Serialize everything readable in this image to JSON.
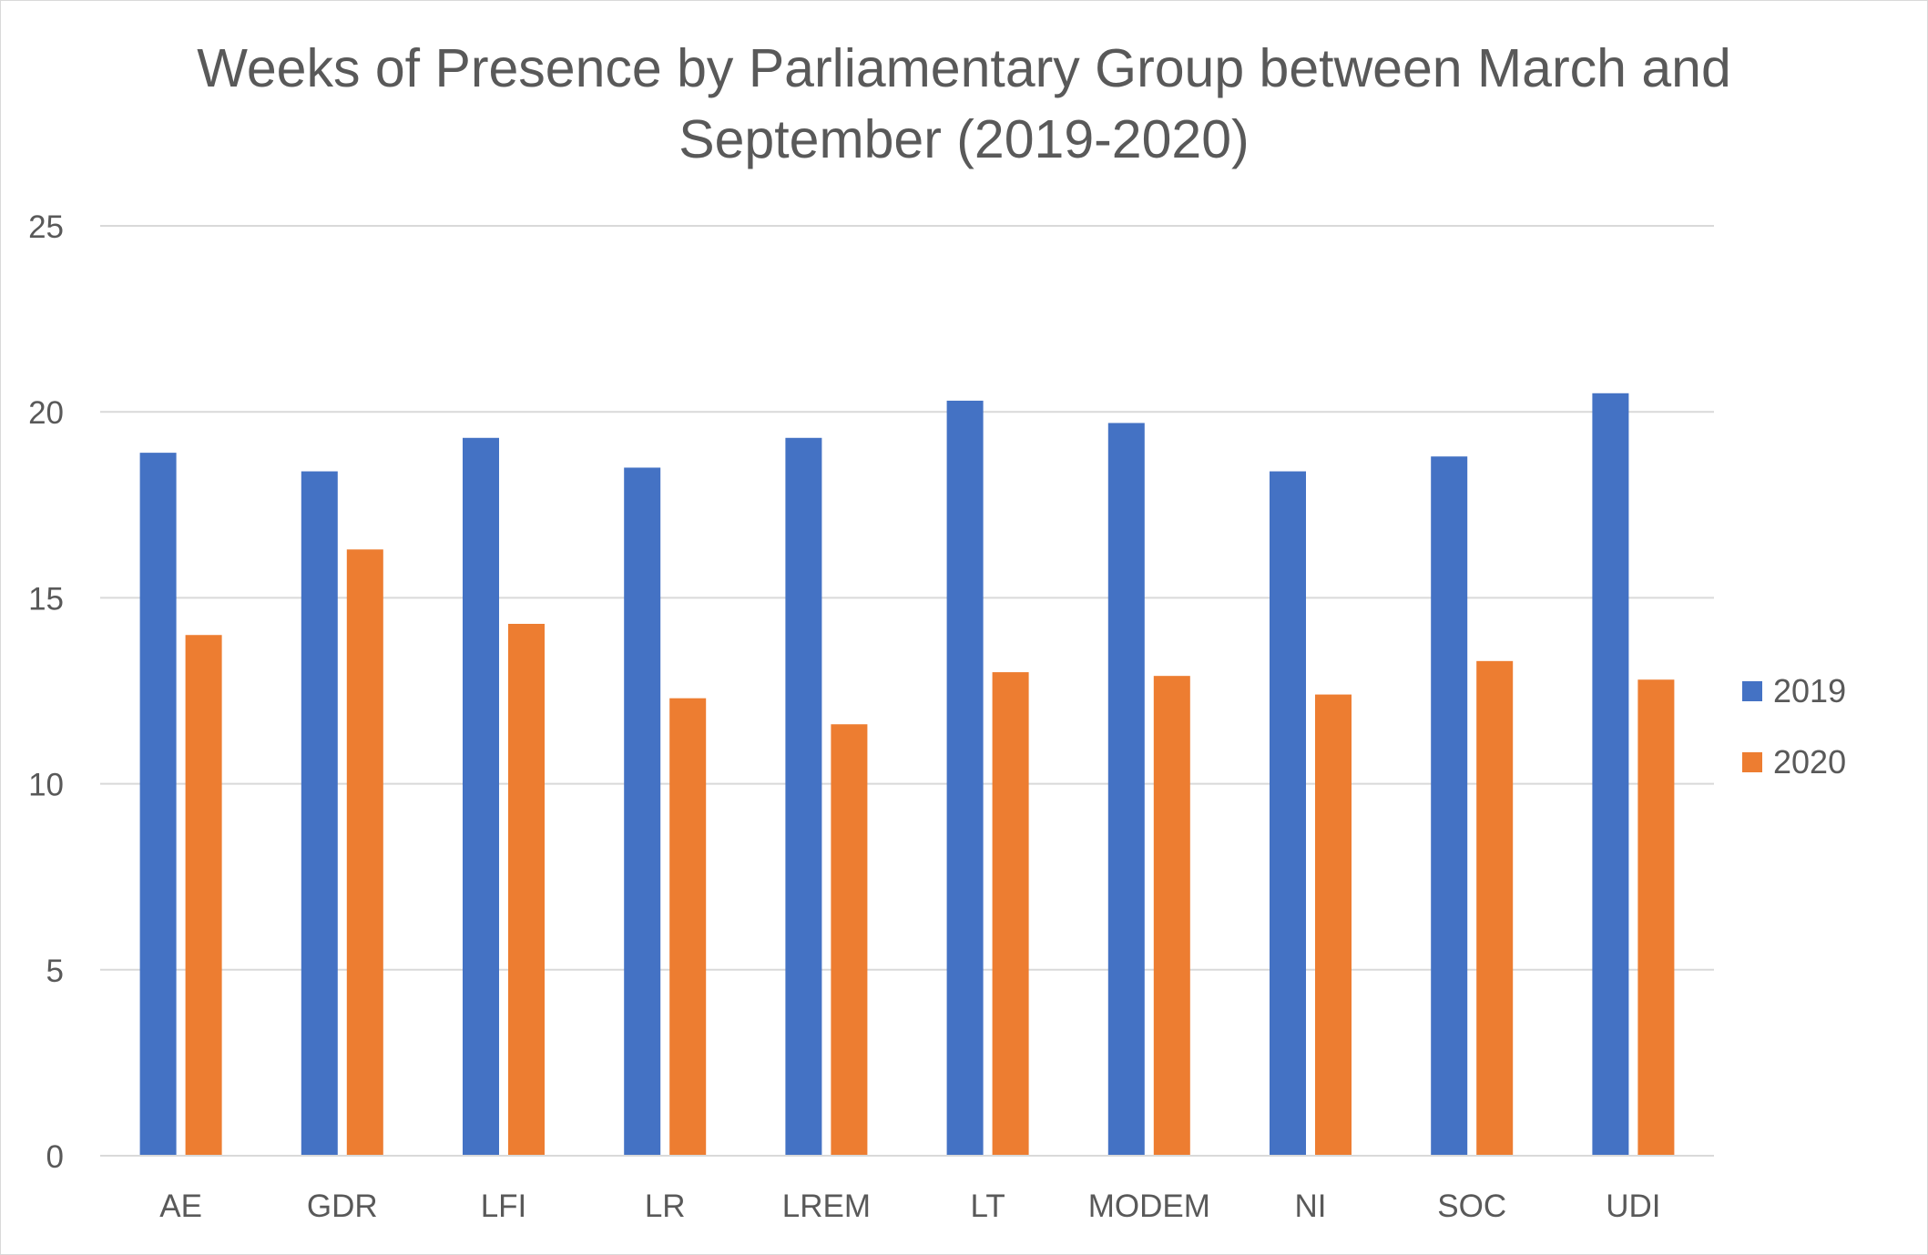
{
  "chart_data": {
    "type": "bar",
    "title": "Weeks of Presence by Parliamentary Group between March and September (2019-2020)",
    "title_lines": [
      "Weeks of Presence by Parliamentary Group between March and",
      "September (2019-2020)"
    ],
    "xlabel": "",
    "ylabel": "",
    "ylim": [
      0,
      25
    ],
    "yticks": [
      0,
      5,
      10,
      15,
      20,
      25
    ],
    "grid": true,
    "legend_position": "right",
    "categories": [
      "AE",
      "GDR",
      "LFI",
      "LR",
      "LREM",
      "LT",
      "MODEM",
      "NI",
      "SOC",
      "UDI"
    ],
    "series": [
      {
        "name": "2019",
        "color": "#4472c4",
        "values": [
          18.9,
          18.4,
          19.3,
          18.5,
          19.3,
          20.3,
          19.7,
          18.4,
          18.8,
          20.5
        ]
      },
      {
        "name": "2020",
        "color": "#ed7d31",
        "values": [
          14.0,
          16.3,
          14.3,
          12.3,
          11.6,
          13.0,
          12.9,
          12.4,
          13.3,
          12.8
        ]
      }
    ]
  }
}
